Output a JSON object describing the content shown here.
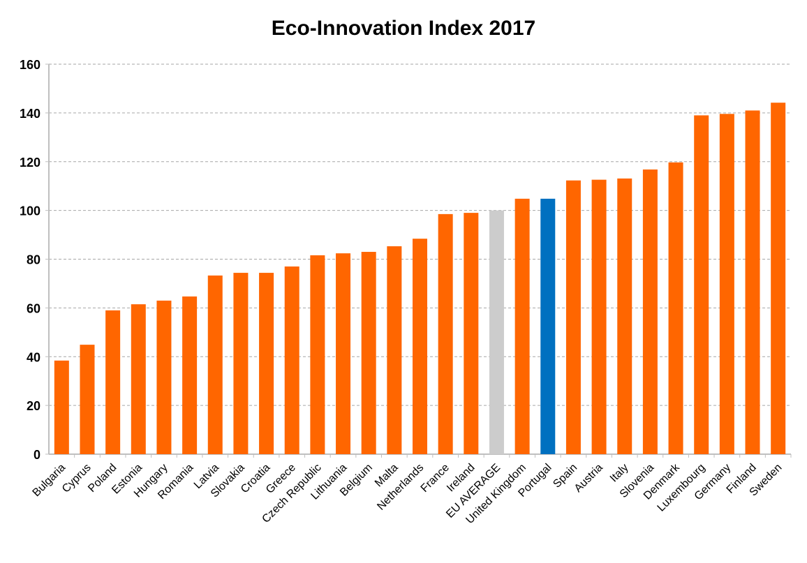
{
  "chart_data": {
    "type": "bar",
    "title": "Eco-Innovation Index 2017",
    "xlabel": "",
    "ylabel": "",
    "ylim": [
      0,
      160
    ],
    "yticks": [
      0,
      20,
      40,
      60,
      80,
      100,
      120,
      140,
      160
    ],
    "grid": true,
    "legend": "none",
    "categories": [
      "Bulgaria",
      "Cyprus",
      "Poland",
      "Estonia",
      "Hungary",
      "Romania",
      "Latvia",
      "Slovakia",
      "Croatia",
      "Greece",
      "Czech Republic",
      "Lithuania",
      "Belgium",
      "Malta",
      "Netherlands",
      "France",
      "Ireland",
      "EU AVERAGE",
      "United Kingdom",
      "Portugal",
      "Spain",
      "Austria",
      "Italy",
      "Slovenia",
      "Denmark",
      "Luxembourg",
      "Germany",
      "Finland",
      "Sweden"
    ],
    "values": [
      38.4,
      44.9,
      59,
      61.5,
      63,
      64.7,
      73.3,
      74.4,
      74.4,
      77,
      81.6,
      82.4,
      83,
      85.3,
      88.4,
      98.5,
      99,
      100,
      104.8,
      104.8,
      112.3,
      112.6,
      113.1,
      116.8,
      119.7,
      139,
      139.6,
      141,
      144.2
    ],
    "colors": {
      "default": "#FF6600",
      "EU AVERAGE": "#CCCCCC",
      "Portugal": "#0070C0"
    }
  }
}
